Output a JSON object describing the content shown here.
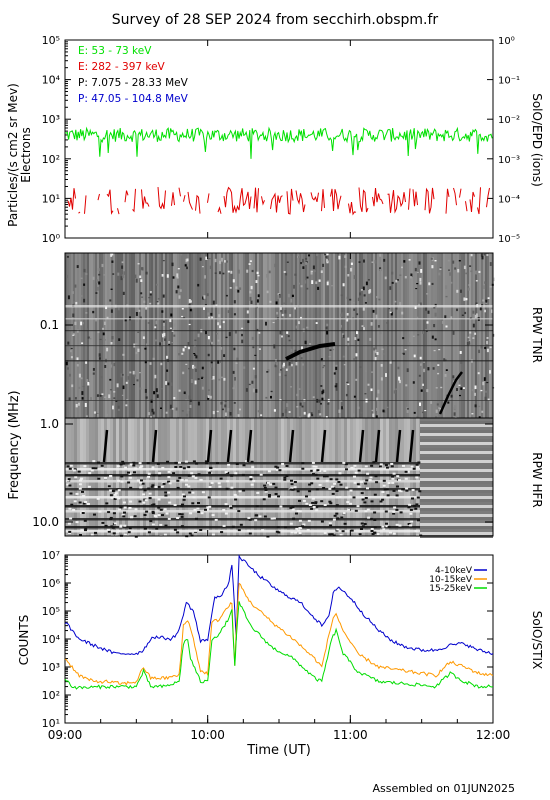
{
  "title": "Survey of 28 SEP 2024 from secchirh.obspm.fr",
  "footer": "Assembled on 01JUN2025",
  "colors": {
    "electrons_low": "#00e000",
    "electrons_high": "#e00000",
    "protons_low": "#000000",
    "protons_high": "#0000cc",
    "stix_4_10": "#0000cc",
    "stix_10_15": "#ff9900",
    "stix_15_25": "#00dd00"
  },
  "chart_data": [
    {
      "type": "line",
      "panel": "SolO/EPD",
      "ylabel": "Particles/(s cm2 sr Mev)",
      "ylabel2": "Electrons",
      "right_label": "SolO/EPD (ions)",
      "yscale": "log",
      "ylim": [
        1,
        100000
      ],
      "y_ticks": [
        "10⁰",
        "10¹",
        "10²",
        "10³",
        "10⁴",
        "10⁵"
      ],
      "right_ylim": [
        1e-05,
        1
      ],
      "right_ticks": [
        "10⁻⁵",
        "10⁻⁴",
        "10⁻³",
        "10⁻²",
        "10⁻¹",
        "10⁰"
      ],
      "x_range_hours": [
        9,
        12
      ],
      "legend": [
        {
          "label": "E: 53 - 73 keV",
          "color": "#00e000"
        },
        {
          "label": "E: 282 - 397 keV",
          "color": "#e00000"
        },
        {
          "label": "P: 7.075 - 28.33 MeV",
          "color": "#000000"
        },
        {
          "label": "P: 47.05 - 104.8 MeV",
          "color": "#0000cc"
        }
      ],
      "series": [
        {
          "name": "E: 53 - 73 keV",
          "typical_value": 400,
          "range": [
            90,
            700
          ]
        },
        {
          "name": "E: 282 - 397 keV",
          "typical_value": 10,
          "range": [
            4,
            20
          ]
        }
      ]
    },
    {
      "type": "heatmap",
      "panel": "RPW TNR",
      "ylabel": "Frequency (MHz)",
      "right_label": "RPW TNR",
      "y_ticks": [
        "0.1",
        "1.0"
      ],
      "x_range_hours": [
        9,
        12
      ]
    },
    {
      "type": "heatmap",
      "panel": "RPW HFR",
      "right_label": "RPW HFR",
      "y_ticks": [
        "1.0",
        "10.0"
      ],
      "x_range_hours": [
        9,
        12
      ]
    },
    {
      "type": "line",
      "panel": "SolO/STIX",
      "ylabel": "COUNTS",
      "right_label": "SolO/STIX",
      "xlabel": "Time (UT)",
      "yscale": "log",
      "ylim": [
        10,
        10000000
      ],
      "y_ticks": [
        "10¹",
        "10²",
        "10³",
        "10⁴",
        "10⁵",
        "10⁶",
        "10⁷"
      ],
      "x_ticks": [
        "09:00",
        "10:00",
        "11:00",
        "12:00"
      ],
      "x_tick_hours": [
        9,
        10,
        11,
        12
      ],
      "x_range_hours": [
        9,
        12
      ],
      "legend": [
        {
          "label": "4-10keV",
          "color": "#0000cc"
        },
        {
          "label": "10-15keV",
          "color": "#ff9900"
        },
        {
          "label": "15-25keV",
          "color": "#00dd00"
        }
      ],
      "series": [
        {
          "name": "4-10keV",
          "points": [
            [
              9.0,
              40000
            ],
            [
              9.1,
              10000
            ],
            [
              9.2,
              6000
            ],
            [
              9.35,
              3000
            ],
            [
              9.5,
              3000
            ],
            [
              9.55,
              4000
            ],
            [
              9.6,
              10000
            ],
            [
              9.62,
              12000
            ],
            [
              9.75,
              10000
            ],
            [
              9.8,
              20000
            ],
            [
              9.85,
              200000
            ],
            [
              9.9,
              100000
            ],
            [
              9.95,
              8000
            ],
            [
              10.0,
              10000
            ],
            [
              10.05,
              300000
            ],
            [
              10.1,
              400000
            ],
            [
              10.15,
              1000000
            ],
            [
              10.17,
              5000000
            ],
            [
              10.19,
              100000
            ],
            [
              10.2,
              10000
            ],
            [
              10.22,
              9000000
            ],
            [
              10.35,
              2000000
            ],
            [
              10.5,
              500000
            ],
            [
              10.65,
              200000
            ],
            [
              10.8,
              30000
            ],
            [
              10.85,
              60000
            ],
            [
              10.88,
              500000
            ],
            [
              10.92,
              700000
            ],
            [
              11.0,
              300000
            ],
            [
              11.1,
              70000
            ],
            [
              11.2,
              20000
            ],
            [
              11.3,
              8000
            ],
            [
              11.4,
              5000
            ],
            [
              11.5,
              4000
            ],
            [
              11.6,
              4000
            ],
            [
              11.7,
              6000
            ],
            [
              11.8,
              7000
            ],
            [
              11.85,
              5000
            ],
            [
              11.9,
              4000
            ],
            [
              12.0,
              3000
            ]
          ]
        },
        {
          "name": "10-15keV",
          "points": [
            [
              9.0,
              2000
            ],
            [
              9.05,
              1000
            ],
            [
              9.1,
              500
            ],
            [
              9.2,
              300
            ],
            [
              9.3,
              300
            ],
            [
              9.4,
              250
            ],
            [
              9.5,
              300
            ],
            [
              9.55,
              1000
            ],
            [
              9.6,
              400
            ],
            [
              9.7,
              400
            ],
            [
              9.8,
              500
            ],
            [
              9.83,
              30000
            ],
            [
              9.86,
              50000
            ],
            [
              9.9,
              10000
            ],
            [
              9.95,
              700
            ],
            [
              10.0,
              600
            ],
            [
              10.03,
              40000
            ],
            [
              10.08,
              50000
            ],
            [
              10.12,
              100000
            ],
            [
              10.17,
              200000
            ],
            [
              10.19,
              1000
            ],
            [
              10.2,
              20000
            ],
            [
              10.22,
              1000000
            ],
            [
              10.3,
              200000
            ],
            [
              10.45,
              40000
            ],
            [
              10.6,
              10000
            ],
            [
              10.75,
              2000
            ],
            [
              10.8,
              1000
            ],
            [
              10.87,
              40000
            ],
            [
              10.9,
              80000
            ],
            [
              10.95,
              20000
            ],
            [
              11.05,
              3000
            ],
            [
              11.2,
              1000
            ],
            [
              11.4,
              700
            ],
            [
              11.6,
              500
            ],
            [
              11.7,
              1500
            ],
            [
              11.8,
              1000
            ],
            [
              11.9,
              600
            ],
            [
              12.0,
              500
            ]
          ]
        },
        {
          "name": "15-25keV",
          "points": [
            [
              9.0,
              400
            ],
            [
              9.05,
              200
            ],
            [
              9.1,
              180
            ],
            [
              9.3,
              200
            ],
            [
              9.5,
              200
            ],
            [
              9.55,
              700
            ],
            [
              9.6,
              200
            ],
            [
              9.7,
              200
            ],
            [
              9.8,
              300
            ],
            [
              9.83,
              7000
            ],
            [
              9.86,
              10000
            ],
            [
              9.88,
              2000
            ],
            [
              9.95,
              300
            ],
            [
              10.0,
              300
            ],
            [
              10.03,
              10000
            ],
            [
              10.08,
              15000
            ],
            [
              10.12,
              30000
            ],
            [
              10.17,
              100000
            ],
            [
              10.19,
              1000
            ],
            [
              10.2,
              10000
            ],
            [
              10.22,
              200000
            ],
            [
              10.3,
              30000
            ],
            [
              10.45,
              5000
            ],
            [
              10.6,
              2000
            ],
            [
              10.75,
              400
            ],
            [
              10.8,
              300
            ],
            [
              10.87,
              10000
            ],
            [
              10.9,
              20000
            ],
            [
              10.95,
              3000
            ],
            [
              11.05,
              700
            ],
            [
              11.2,
              300
            ],
            [
              11.4,
              250
            ],
            [
              11.6,
              200
            ],
            [
              11.7,
              600
            ],
            [
              11.8,
              300
            ],
            [
              11.9,
              200
            ],
            [
              12.0,
              200
            ]
          ]
        }
      ]
    }
  ]
}
